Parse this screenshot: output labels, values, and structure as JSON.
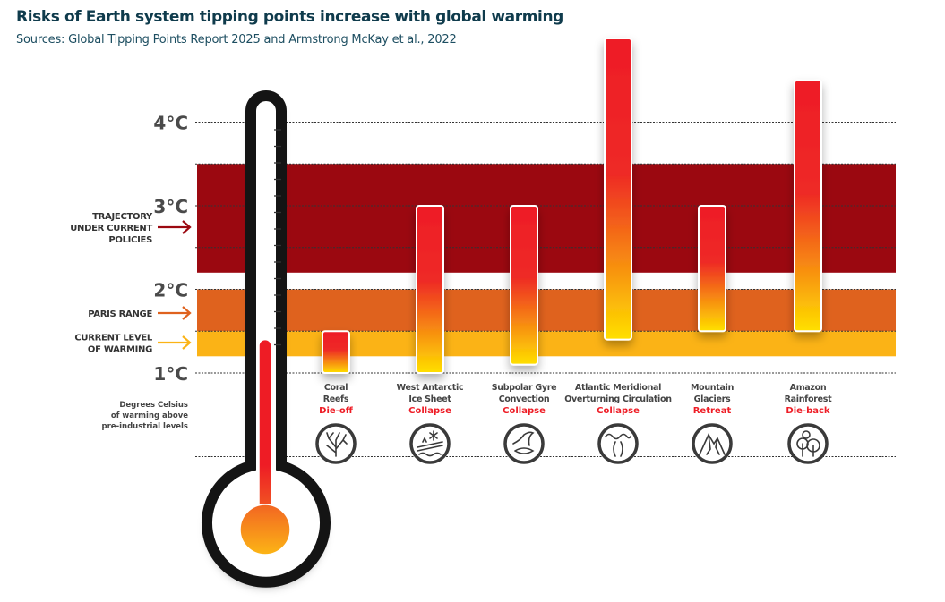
{
  "chart_data": {
    "type": "bar",
    "subtype": "floating-range",
    "title": "Risks of Earth system tipping points increase with global warming",
    "subtitle": "Sources: Global Tipping Points Report 2025 and Armstrong McKay et al., 2022",
    "ylabel": "Degrees Celsius of warming above pre-industrial levels",
    "ylabel_lines": [
      "Degrees Celsius",
      "of warming above",
      "pre-industrial levels"
    ],
    "ylim": [
      0,
      5
    ],
    "yticks": [
      {
        "value": 1,
        "label": "1°C"
      },
      {
        "value": 2,
        "label": "2°C"
      },
      {
        "value": 3,
        "label": "3°C"
      },
      {
        "value": 4,
        "label": "4°C"
      }
    ],
    "grid": true,
    "bands": [
      {
        "name": "trajectory",
        "label_lines": [
          "TRAJECTORY",
          "UNDER CURRENT",
          "POLICIES"
        ],
        "range": [
          2.2,
          3.5
        ],
        "color": "#9b0810"
      },
      {
        "name": "paris",
        "label_lines": [
          "PARIS RANGE"
        ],
        "range": [
          1.5,
          2.0
        ],
        "color": "#df621e"
      },
      {
        "name": "current",
        "label_lines": [
          "CURRENT LEVEL",
          "OF WARMING"
        ],
        "range": [
          1.2,
          1.5
        ],
        "color": "#fbb316"
      }
    ],
    "current_warming": 1.4,
    "categories": [
      {
        "name_lines": [
          "Coral",
          "Reefs"
        ],
        "outcome": "Die-off",
        "range": [
          1.0,
          1.5
        ],
        "icon": "coral-icon"
      },
      {
        "name_lines": [
          "West Antarctic",
          "Ice Sheet"
        ],
        "outcome": "Collapse",
        "range": [
          1.0,
          3.0
        ],
        "icon": "ice-sheet-icon"
      },
      {
        "name_lines": [
          "Subpolar Gyre",
          "Convection"
        ],
        "outcome": "Collapse",
        "range": [
          1.1,
          3.0
        ],
        "icon": "gyre-icon"
      },
      {
        "name_lines": [
          "Atlantic Meridional",
          "Overturning Circulation"
        ],
        "outcome": "Collapse",
        "range": [
          1.4,
          5.0
        ],
        "icon": "ocean-circulation-icon"
      },
      {
        "name_lines": [
          "Mountain",
          "Glaciers"
        ],
        "outcome": "Retreat",
        "range": [
          1.5,
          3.0
        ],
        "icon": "mountain-icon"
      },
      {
        "name_lines": [
          "Amazon",
          "Rainforest"
        ],
        "outcome": "Die-back",
        "range": [
          1.5,
          4.5
        ],
        "icon": "forest-icon"
      }
    ],
    "colors": {
      "bar_top": "#ee1c25",
      "bar_bottom": "#ffe000",
      "outcome": "#ee1c25",
      "thermometer": "#141414"
    }
  }
}
